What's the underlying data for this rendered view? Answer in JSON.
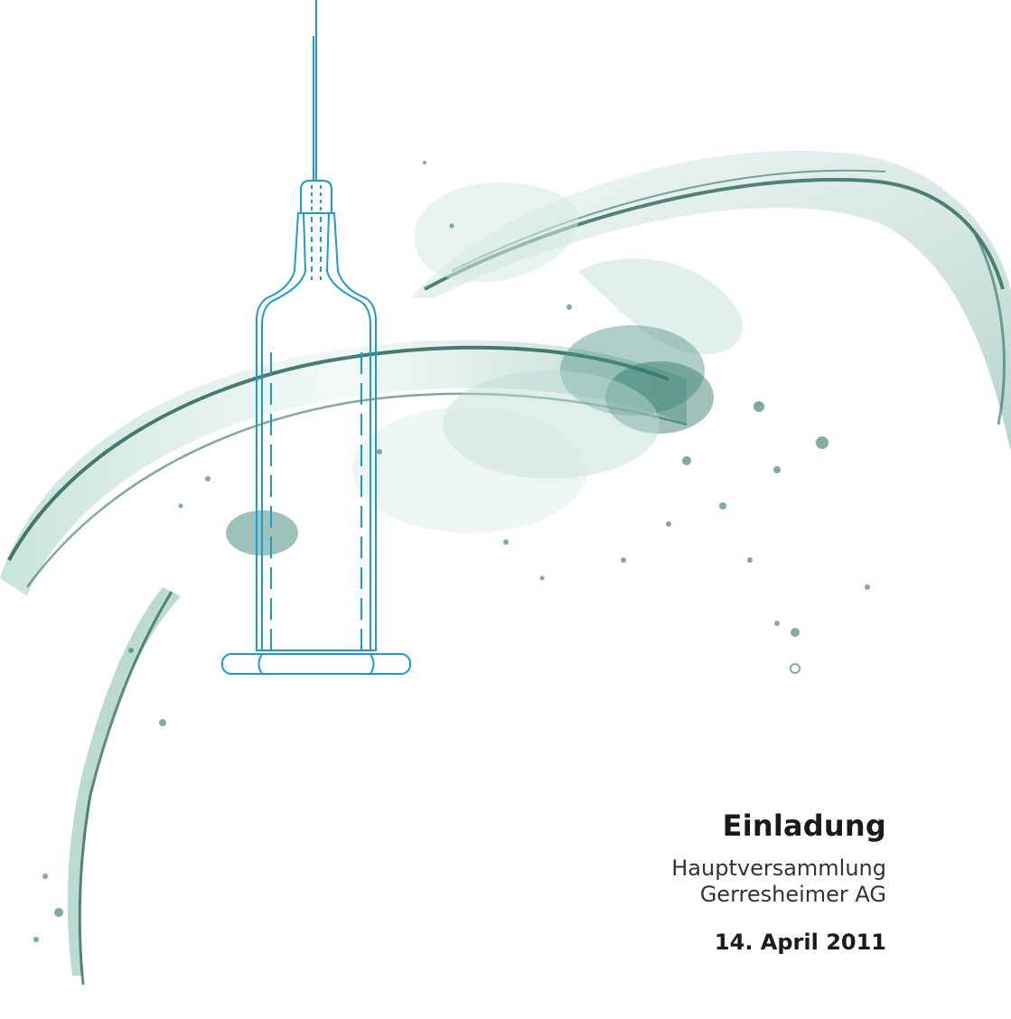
{
  "cover": {
    "title": "Einladung",
    "line1": "Hauptversammlung",
    "line2": "Gerresheimer AG",
    "date": "14. April 2011"
  },
  "colors": {
    "syringe": "#1a9bd7",
    "splash_light": "#cfe6e0",
    "splash_mid": "#7fb9ad",
    "splash_dark": "#1f5c4f"
  },
  "illustration": {
    "icon": "syringe-icon",
    "background": "water-splash"
  }
}
